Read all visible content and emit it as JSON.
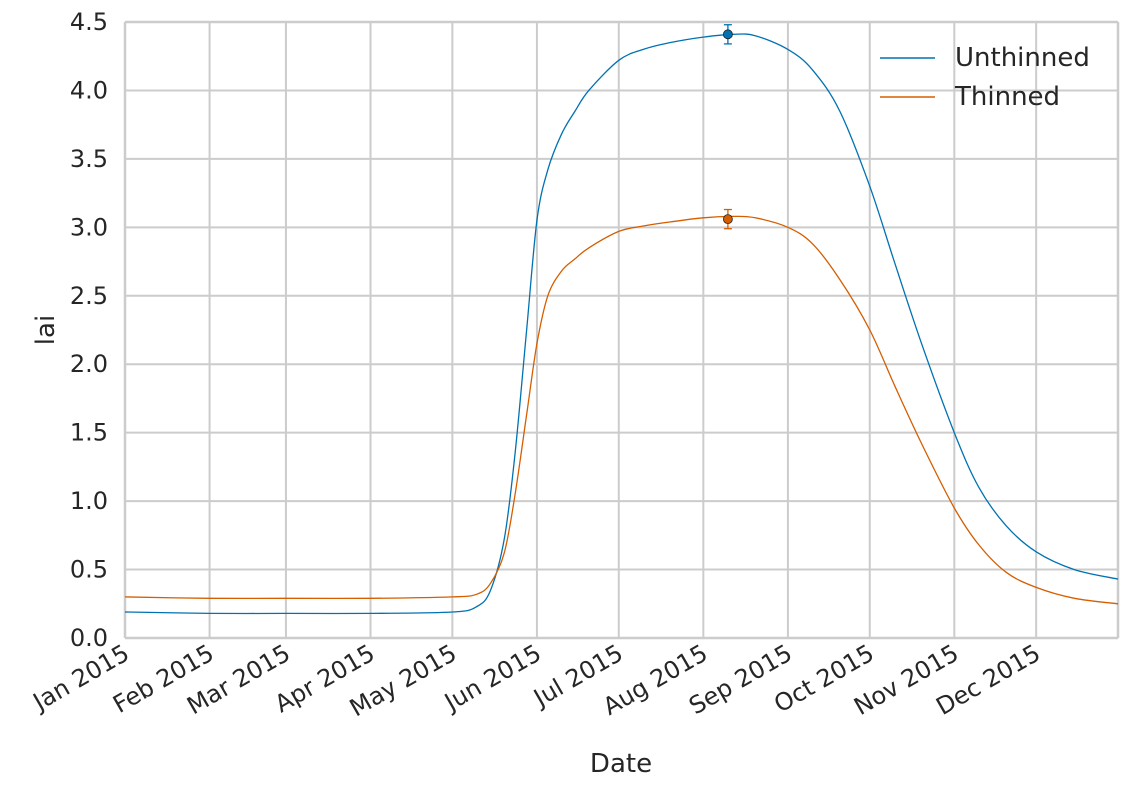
{
  "chart_data": {
    "type": "line",
    "xlabel": "Date",
    "ylabel": "lai",
    "xlim": [
      "2015-01-01",
      "2015-12-31"
    ],
    "ylim": [
      0,
      4.5
    ],
    "grid": true,
    "legend_position": "top-right",
    "x_ticks": [
      {
        "date": "2015-01-01",
        "label": "Jan 2015"
      },
      {
        "date": "2015-02-01",
        "label": "Feb 2015"
      },
      {
        "date": "2015-03-01",
        "label": "Mar 2015"
      },
      {
        "date": "2015-04-01",
        "label": "Apr 2015"
      },
      {
        "date": "2015-05-01",
        "label": "May 2015"
      },
      {
        "date": "2015-06-01",
        "label": "Jun 2015"
      },
      {
        "date": "2015-07-01",
        "label": "Jul 2015"
      },
      {
        "date": "2015-08-01",
        "label": "Aug 2015"
      },
      {
        "date": "2015-09-01",
        "label": "Sep 2015"
      },
      {
        "date": "2015-10-01",
        "label": "Oct 2015"
      },
      {
        "date": "2015-11-01",
        "label": "Nov 2015"
      },
      {
        "date": "2015-12-01",
        "label": "Dec 2015"
      }
    ],
    "y_ticks": [
      "0.0",
      "0.5",
      "1.0",
      "1.5",
      "2.0",
      "2.5",
      "3.0",
      "3.5",
      "4.0",
      "4.5"
    ],
    "series": [
      {
        "name": "Unthinned",
        "color": "#0072b2",
        "x": [
          "2015-01-01",
          "2015-02-01",
          "2015-03-01",
          "2015-04-01",
          "2015-05-01",
          "2015-05-10",
          "2015-05-15",
          "2015-05-20",
          "2015-05-24",
          "2015-05-28",
          "2015-06-01",
          "2015-06-05",
          "2015-06-10",
          "2015-06-15",
          "2015-06-20",
          "2015-07-01",
          "2015-07-10",
          "2015-07-20",
          "2015-08-01",
          "2015-08-12",
          "2015-08-20",
          "2015-09-01",
          "2015-09-10",
          "2015-09-20",
          "2015-10-01",
          "2015-10-10",
          "2015-10-20",
          "2015-11-01",
          "2015-11-10",
          "2015-11-20",
          "2015-12-01",
          "2015-12-15",
          "2015-12-31"
        ],
        "values": [
          0.19,
          0.18,
          0.18,
          0.18,
          0.19,
          0.23,
          0.35,
          0.72,
          1.35,
          2.2,
          3.05,
          3.42,
          3.68,
          3.85,
          4.0,
          4.22,
          4.3,
          4.35,
          4.39,
          4.41,
          4.4,
          4.3,
          4.15,
          3.85,
          3.3,
          2.75,
          2.15,
          1.5,
          1.1,
          0.82,
          0.63,
          0.5,
          0.43
        ]
      },
      {
        "name": "Thinned",
        "color": "#d55e00",
        "x": [
          "2015-01-01",
          "2015-02-01",
          "2015-03-01",
          "2015-04-01",
          "2015-05-01",
          "2015-05-10",
          "2015-05-15",
          "2015-05-20",
          "2015-05-24",
          "2015-05-28",
          "2015-06-01",
          "2015-06-05",
          "2015-06-10",
          "2015-06-15",
          "2015-06-20",
          "2015-07-01",
          "2015-07-10",
          "2015-07-20",
          "2015-08-01",
          "2015-08-12",
          "2015-08-20",
          "2015-09-01",
          "2015-09-10",
          "2015-09-20",
          "2015-10-01",
          "2015-10-10",
          "2015-10-20",
          "2015-11-01",
          "2015-11-10",
          "2015-11-20",
          "2015-12-01",
          "2015-12-15",
          "2015-12-31"
        ],
        "values": [
          0.3,
          0.29,
          0.29,
          0.29,
          0.3,
          0.32,
          0.4,
          0.62,
          1.05,
          1.6,
          2.15,
          2.5,
          2.68,
          2.77,
          2.85,
          2.97,
          3.01,
          3.04,
          3.07,
          3.08,
          3.07,
          3.0,
          2.88,
          2.62,
          2.25,
          1.85,
          1.42,
          0.95,
          0.68,
          0.48,
          0.37,
          0.29,
          0.25
        ]
      }
    ],
    "observations": [
      {
        "series": "Unthinned",
        "date": "2015-08-10",
        "value": 4.41,
        "error": 0.07,
        "color": "#0072b2"
      },
      {
        "series": "Thinned",
        "date": "2015-08-10",
        "value": 3.06,
        "error": 0.07,
        "color": "#d55e00"
      }
    ]
  }
}
